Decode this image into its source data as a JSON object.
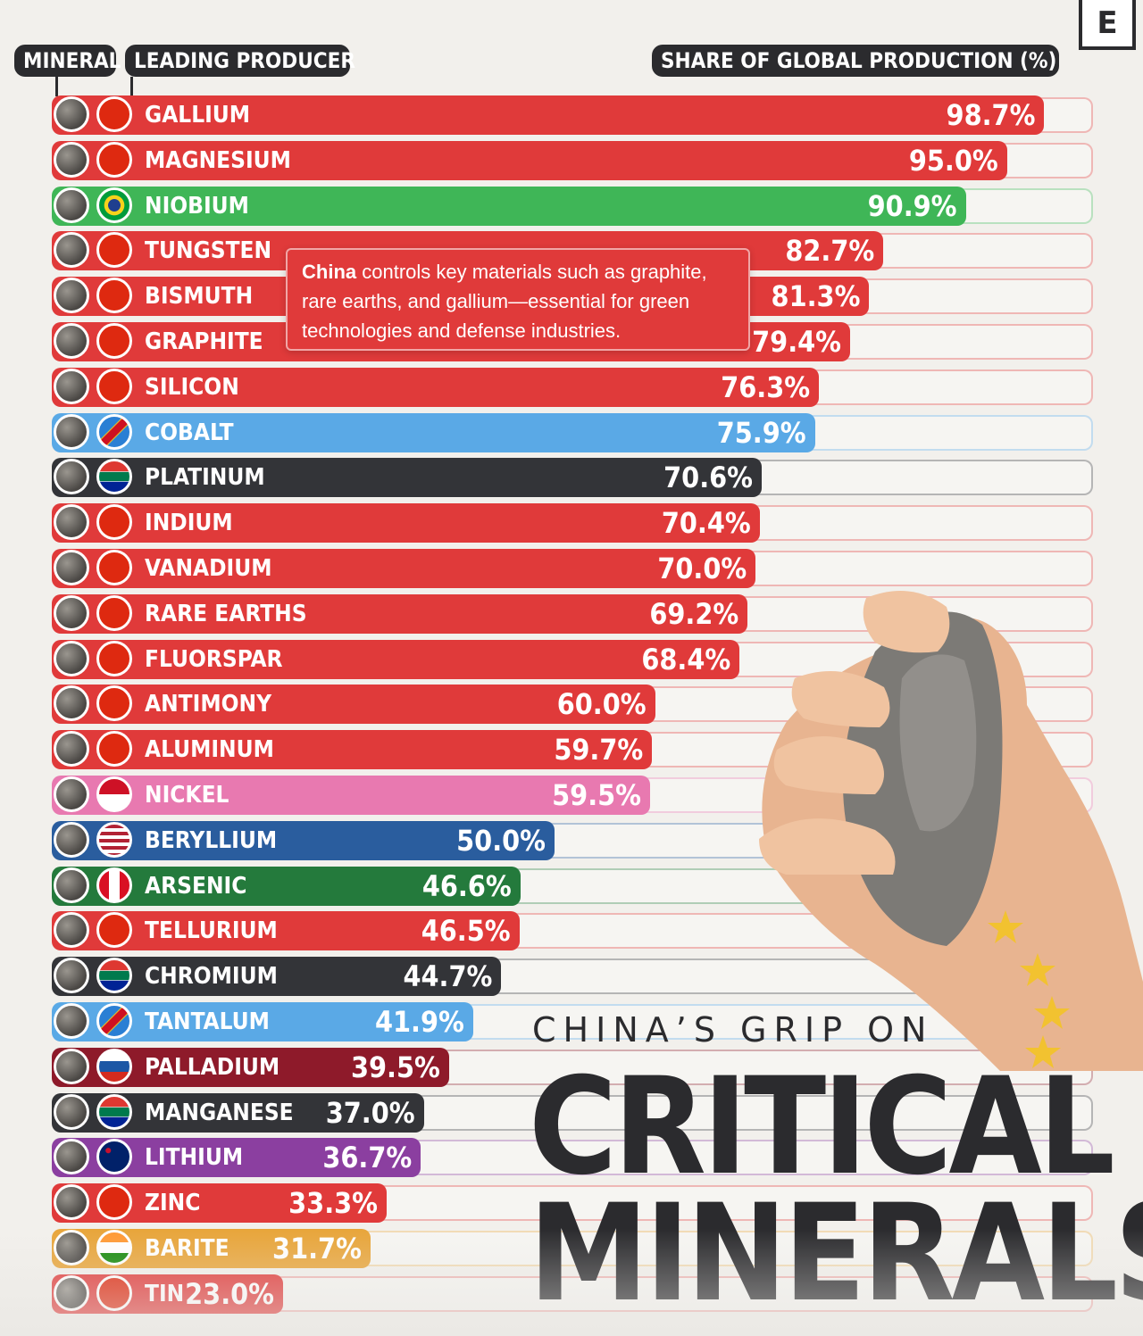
{
  "header": {
    "mineral_label": "MINERAL",
    "producer_label": "LEADING PRODUCER",
    "share_label": "SHARE OF GLOBAL PRODUCTION (%)",
    "logo": "E"
  },
  "callout": {
    "bold": "China",
    "text": " controls key materials such as graphite, rare earths, and gallium—essential for green technologies and defense industries."
  },
  "title": {
    "line1": "CHINA’S GRIP ON",
    "line2": "CRITICAL",
    "line3": "MINERALS"
  },
  "colors": {
    "china": "#e03a3a",
    "brazil": "#3fb657",
    "drc": "#5aa9e6",
    "south_africa": "#333438",
    "indonesia": "#e879b0",
    "usa": "#2a5d9e",
    "peru": "#247a3c",
    "russia": "#8e1a2a",
    "australia": "#8b3fa0",
    "india": "#e8a53a"
  },
  "chart_data": {
    "type": "bar",
    "orientation": "horizontal",
    "xlim": [
      0,
      100
    ],
    "unit": "%",
    "categories": [
      "GALLIUM",
      "MAGNESIUM",
      "NIOBIUM",
      "TUNGSTEN",
      "BISMUTH",
      "GRAPHITE",
      "SILICON",
      "COBALT",
      "PLATINUM",
      "INDIUM",
      "VANADIUM",
      "RARE EARTHS",
      "FLUORSPAR",
      "ANTIMONY",
      "ALUMINUM",
      "NICKEL",
      "BERYLLIUM",
      "ARSENIC",
      "TELLURIUM",
      "CHROMIUM",
      "TANTALUM",
      "PALLADIUM",
      "MANGANESE",
      "LITHIUM",
      "ZINC",
      "BARITE",
      "TIN"
    ],
    "values": [
      98.7,
      95.0,
      90.9,
      82.7,
      81.3,
      79.4,
      76.3,
      75.9,
      70.6,
      70.4,
      70.0,
      69.2,
      68.4,
      60.0,
      59.7,
      59.5,
      50.0,
      46.6,
      46.5,
      44.7,
      41.9,
      39.5,
      37.0,
      36.7,
      33.3,
      31.7,
      23.0
    ],
    "value_labels": [
      "98.7%",
      "95.0%",
      "90.9%",
      "82.7%",
      "81.3%",
      "79.4%",
      "76.3%",
      "75.9%",
      "70.6%",
      "70.4%",
      "70.0%",
      "69.2%",
      "68.4%",
      "60.0%",
      "59.7%",
      "59.5%",
      "50.0%",
      "46.6%",
      "46.5%",
      "44.7%",
      "41.9%",
      "39.5%",
      "37.0%",
      "36.7%",
      "33.3%",
      "31.7%",
      "23.0%"
    ],
    "producers": [
      "china",
      "china",
      "brazil",
      "china",
      "china",
      "china",
      "china",
      "drc",
      "south_africa",
      "china",
      "china",
      "china",
      "china",
      "china",
      "china",
      "indonesia",
      "usa",
      "peru",
      "china",
      "south_africa",
      "drc",
      "russia",
      "south_africa",
      "australia",
      "china",
      "india",
      "china"
    ]
  }
}
